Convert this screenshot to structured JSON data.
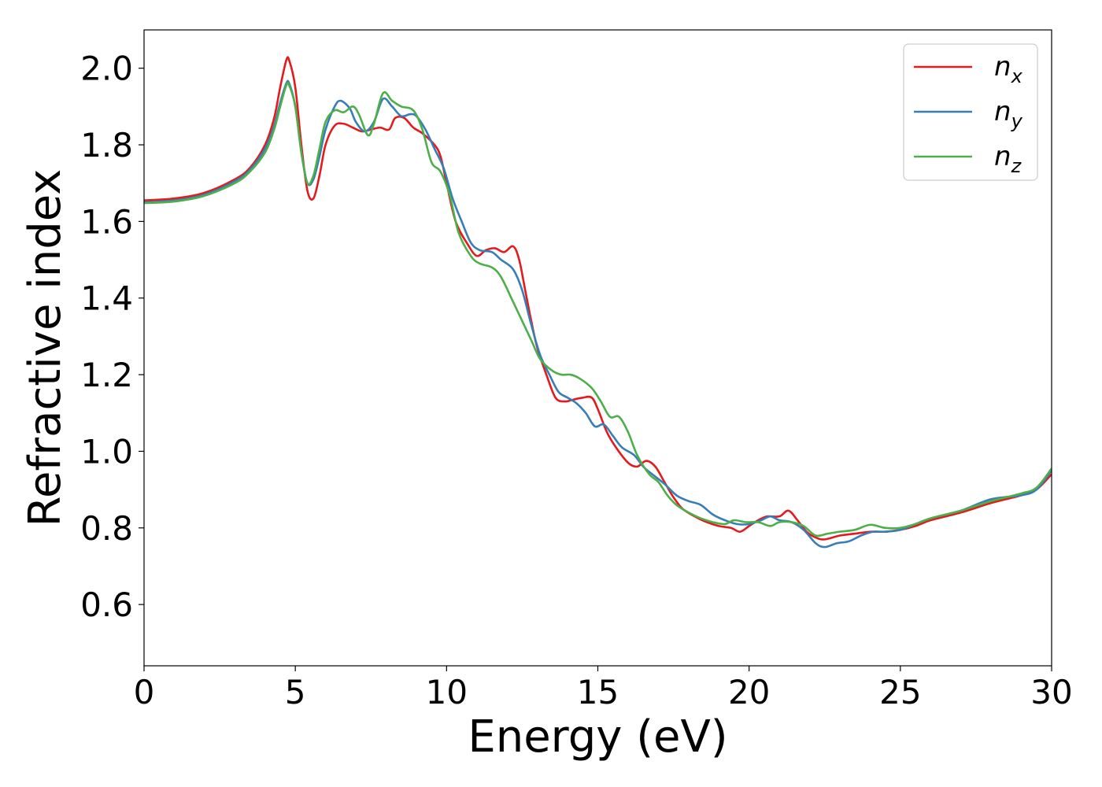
{
  "chart_data": {
    "type": "line",
    "xlabel": "Energy (eV)",
    "ylabel": "Refractive index",
    "xlim": [
      0,
      30
    ],
    "ylim": [
      0.44,
      2.1
    ],
    "x_ticks": [
      0,
      5,
      10,
      15,
      20,
      25,
      30
    ],
    "x_tick_labels": [
      "0",
      "5",
      "10",
      "15",
      "20",
      "25",
      "30"
    ],
    "y_ticks": [
      0.6,
      0.8,
      1.0,
      1.2,
      1.4,
      1.6,
      1.8,
      2.0
    ],
    "y_tick_labels": [
      "0.6",
      "0.8",
      "1.0",
      "1.2",
      "1.4",
      "1.6",
      "1.8",
      "2.0"
    ],
    "grid": false,
    "legend_position": "top-right",
    "series": [
      {
        "name": "n_x",
        "legend_base": "n",
        "legend_sub": "x",
        "color": "#e41a1c",
        "points": [
          [
            0,
            1.655
          ],
          [
            1,
            1.66
          ],
          [
            2,
            1.675
          ],
          [
            3,
            1.71
          ],
          [
            3.5,
            1.74
          ],
          [
            4,
            1.8
          ],
          [
            4.3,
            1.87
          ],
          [
            4.5,
            1.95
          ],
          [
            4.7,
            2.02
          ],
          [
            4.8,
            2.02
          ],
          [
            5.0,
            1.95
          ],
          [
            5.2,
            1.8
          ],
          [
            5.4,
            1.68
          ],
          [
            5.6,
            1.66
          ],
          [
            5.8,
            1.72
          ],
          [
            6.0,
            1.8
          ],
          [
            6.3,
            1.85
          ],
          [
            6.6,
            1.855
          ],
          [
            6.9,
            1.845
          ],
          [
            7.2,
            1.835
          ],
          [
            7.5,
            1.84
          ],
          [
            7.8,
            1.845
          ],
          [
            8.1,
            1.84
          ],
          [
            8.3,
            1.87
          ],
          [
            8.6,
            1.87
          ],
          [
            8.9,
            1.845
          ],
          [
            9.2,
            1.83
          ],
          [
            9.6,
            1.8
          ],
          [
            9.8,
            1.77
          ],
          [
            10.0,
            1.7
          ],
          [
            10.3,
            1.6
          ],
          [
            10.7,
            1.54
          ],
          [
            11.0,
            1.51
          ],
          [
            11.3,
            1.525
          ],
          [
            11.6,
            1.53
          ],
          [
            11.9,
            1.52
          ],
          [
            12.2,
            1.535
          ],
          [
            12.4,
            1.5
          ],
          [
            12.6,
            1.42
          ],
          [
            12.8,
            1.34
          ],
          [
            13.0,
            1.27
          ],
          [
            13.3,
            1.2
          ],
          [
            13.6,
            1.14
          ],
          [
            13.9,
            1.13
          ],
          [
            14.2,
            1.135
          ],
          [
            14.5,
            1.14
          ],
          [
            14.8,
            1.14
          ],
          [
            15.0,
            1.11
          ],
          [
            15.3,
            1.05
          ],
          [
            15.6,
            1.01
          ],
          [
            16.0,
            0.97
          ],
          [
            16.3,
            0.96
          ],
          [
            16.6,
            0.975
          ],
          [
            16.9,
            0.96
          ],
          [
            17.2,
            0.92
          ],
          [
            17.5,
            0.88
          ],
          [
            17.8,
            0.85
          ],
          [
            18.2,
            0.83
          ],
          [
            18.6,
            0.815
          ],
          [
            19.0,
            0.805
          ],
          [
            19.4,
            0.8
          ],
          [
            19.7,
            0.79
          ],
          [
            20.0,
            0.805
          ],
          [
            20.3,
            0.82
          ],
          [
            20.6,
            0.83
          ],
          [
            21.0,
            0.83
          ],
          [
            21.3,
            0.845
          ],
          [
            21.6,
            0.82
          ],
          [
            21.9,
            0.79
          ],
          [
            22.2,
            0.775
          ],
          [
            22.5,
            0.77
          ],
          [
            23.0,
            0.78
          ],
          [
            23.5,
            0.785
          ],
          [
            24.0,
            0.79
          ],
          [
            24.5,
            0.79
          ],
          [
            25.0,
            0.795
          ],
          [
            25.5,
            0.805
          ],
          [
            26.0,
            0.82
          ],
          [
            27.0,
            0.84
          ],
          [
            28.0,
            0.865
          ],
          [
            29.0,
            0.885
          ],
          [
            29.5,
            0.9
          ],
          [
            30,
            0.94
          ]
        ]
      },
      {
        "name": "n_y",
        "legend_base": "n",
        "legend_sub": "y",
        "color": "#377eb8",
        "points": [
          [
            0,
            1.65
          ],
          [
            1,
            1.655
          ],
          [
            2,
            1.67
          ],
          [
            3,
            1.705
          ],
          [
            3.5,
            1.735
          ],
          [
            4,
            1.79
          ],
          [
            4.3,
            1.85
          ],
          [
            4.5,
            1.91
          ],
          [
            4.7,
            1.96
          ],
          [
            4.8,
            1.96
          ],
          [
            5.0,
            1.9
          ],
          [
            5.2,
            1.78
          ],
          [
            5.4,
            1.7
          ],
          [
            5.6,
            1.71
          ],
          [
            5.8,
            1.77
          ],
          [
            6.0,
            1.84
          ],
          [
            6.3,
            1.9
          ],
          [
            6.5,
            1.915
          ],
          [
            6.8,
            1.895
          ],
          [
            7.0,
            1.86
          ],
          [
            7.3,
            1.835
          ],
          [
            7.6,
            1.86
          ],
          [
            7.9,
            1.92
          ],
          [
            8.2,
            1.9
          ],
          [
            8.5,
            1.875
          ],
          [
            8.8,
            1.88
          ],
          [
            9.0,
            1.875
          ],
          [
            9.3,
            1.84
          ],
          [
            9.6,
            1.79
          ],
          [
            9.9,
            1.74
          ],
          [
            10.2,
            1.66
          ],
          [
            10.5,
            1.6
          ],
          [
            10.8,
            1.545
          ],
          [
            11.1,
            1.525
          ],
          [
            11.5,
            1.52
          ],
          [
            11.8,
            1.5
          ],
          [
            12.2,
            1.475
          ],
          [
            12.5,
            1.42
          ],
          [
            12.8,
            1.33
          ],
          [
            13.1,
            1.25
          ],
          [
            13.4,
            1.2
          ],
          [
            13.7,
            1.155
          ],
          [
            14.0,
            1.14
          ],
          [
            14.3,
            1.125
          ],
          [
            14.6,
            1.1
          ],
          [
            14.9,
            1.065
          ],
          [
            15.2,
            1.07
          ],
          [
            15.5,
            1.04
          ],
          [
            15.8,
            1.01
          ],
          [
            16.2,
            0.99
          ],
          [
            16.5,
            0.96
          ],
          [
            16.8,
            0.94
          ],
          [
            17.2,
            0.915
          ],
          [
            17.6,
            0.885
          ],
          [
            18.0,
            0.87
          ],
          [
            18.4,
            0.86
          ],
          [
            18.8,
            0.835
          ],
          [
            19.2,
            0.82
          ],
          [
            19.6,
            0.81
          ],
          [
            20.0,
            0.81
          ],
          [
            20.4,
            0.82
          ],
          [
            20.7,
            0.83
          ],
          [
            21.0,
            0.82
          ],
          [
            21.4,
            0.815
          ],
          [
            21.8,
            0.795
          ],
          [
            22.2,
            0.76
          ],
          [
            22.5,
            0.75
          ],
          [
            22.9,
            0.76
          ],
          [
            23.3,
            0.765
          ],
          [
            23.7,
            0.78
          ],
          [
            24.1,
            0.79
          ],
          [
            24.5,
            0.79
          ],
          [
            25.0,
            0.795
          ],
          [
            25.5,
            0.81
          ],
          [
            26.0,
            0.825
          ],
          [
            27.0,
            0.845
          ],
          [
            28.0,
            0.875
          ],
          [
            29.0,
            0.885
          ],
          [
            29.5,
            0.9
          ],
          [
            30,
            0.95
          ]
        ]
      },
      {
        "name": "n_z",
        "legend_base": "n",
        "legend_sub": "z",
        "color": "#4daf4a",
        "points": [
          [
            0,
            1.648
          ],
          [
            1,
            1.652
          ],
          [
            2,
            1.667
          ],
          [
            3,
            1.7
          ],
          [
            3.5,
            1.73
          ],
          [
            4,
            1.78
          ],
          [
            4.3,
            1.84
          ],
          [
            4.5,
            1.9
          ],
          [
            4.7,
            1.955
          ],
          [
            4.8,
            1.955
          ],
          [
            5.0,
            1.9
          ],
          [
            5.2,
            1.78
          ],
          [
            5.4,
            1.7
          ],
          [
            5.6,
            1.72
          ],
          [
            5.8,
            1.79
          ],
          [
            6.0,
            1.86
          ],
          [
            6.3,
            1.89
          ],
          [
            6.6,
            1.885
          ],
          [
            6.9,
            1.9
          ],
          [
            7.1,
            1.88
          ],
          [
            7.4,
            1.825
          ],
          [
            7.6,
            1.855
          ],
          [
            7.9,
            1.935
          ],
          [
            8.2,
            1.915
          ],
          [
            8.5,
            1.9
          ],
          [
            8.9,
            1.89
          ],
          [
            9.2,
            1.84
          ],
          [
            9.5,
            1.755
          ],
          [
            9.8,
            1.73
          ],
          [
            10.1,
            1.67
          ],
          [
            10.4,
            1.57
          ],
          [
            10.8,
            1.51
          ],
          [
            11.1,
            1.49
          ],
          [
            11.5,
            1.48
          ],
          [
            11.8,
            1.455
          ],
          [
            12.2,
            1.39
          ],
          [
            12.5,
            1.34
          ],
          [
            12.8,
            1.29
          ],
          [
            13.1,
            1.24
          ],
          [
            13.5,
            1.21
          ],
          [
            13.8,
            1.2
          ],
          [
            14.1,
            1.2
          ],
          [
            14.4,
            1.19
          ],
          [
            14.8,
            1.165
          ],
          [
            15.1,
            1.13
          ],
          [
            15.4,
            1.09
          ],
          [
            15.7,
            1.09
          ],
          [
            16.0,
            1.05
          ],
          [
            16.3,
            0.99
          ],
          [
            16.7,
            0.94
          ],
          [
            17.0,
            0.92
          ],
          [
            17.3,
            0.885
          ],
          [
            17.6,
            0.86
          ],
          [
            18.0,
            0.84
          ],
          [
            18.4,
            0.825
          ],
          [
            18.8,
            0.815
          ],
          [
            19.2,
            0.81
          ],
          [
            19.5,
            0.82
          ],
          [
            19.9,
            0.815
          ],
          [
            20.3,
            0.815
          ],
          [
            20.7,
            0.805
          ],
          [
            21.0,
            0.815
          ],
          [
            21.4,
            0.815
          ],
          [
            21.8,
            0.805
          ],
          [
            22.2,
            0.78
          ],
          [
            22.6,
            0.785
          ],
          [
            23.0,
            0.79
          ],
          [
            23.5,
            0.795
          ],
          [
            24.0,
            0.808
          ],
          [
            24.5,
            0.8
          ],
          [
            25.0,
            0.8
          ],
          [
            25.5,
            0.81
          ],
          [
            26.0,
            0.825
          ],
          [
            27.0,
            0.845
          ],
          [
            28.0,
            0.87
          ],
          [
            29.0,
            0.89
          ],
          [
            29.5,
            0.905
          ],
          [
            30,
            0.955
          ]
        ]
      }
    ]
  }
}
